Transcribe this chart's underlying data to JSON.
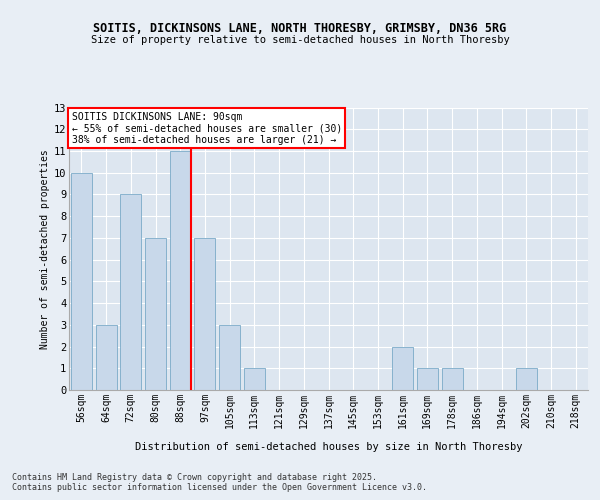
{
  "title1": "SOITIS, DICKINSONS LANE, NORTH THORESBY, GRIMSBY, DN36 5RG",
  "title2": "Size of property relative to semi-detached houses in North Thoresby",
  "xlabel": "Distribution of semi-detached houses by size in North Thoresby",
  "ylabel": "Number of semi-detached properties",
  "categories": [
    "56sqm",
    "64sqm",
    "72sqm",
    "80sqm",
    "88sqm",
    "97sqm",
    "105sqm",
    "113sqm",
    "121sqm",
    "129sqm",
    "137sqm",
    "145sqm",
    "153sqm",
    "161sqm",
    "169sqm",
    "178sqm",
    "186sqm",
    "194sqm",
    "202sqm",
    "210sqm",
    "218sqm"
  ],
  "values": [
    10,
    3,
    9,
    7,
    11,
    7,
    3,
    1,
    0,
    0,
    0,
    0,
    0,
    2,
    1,
    1,
    0,
    0,
    1,
    0,
    0
  ],
  "bar_color": "#c8d8ea",
  "bar_edgecolor": "#7aaac8",
  "red_line_index": 4,
  "annotation_title": "SOITIS DICKINSONS LANE: 90sqm",
  "annotation_line1": "← 55% of semi-detached houses are smaller (30)",
  "annotation_line2": "38% of semi-detached houses are larger (21) →",
  "ylim": [
    0,
    13
  ],
  "yticks": [
    0,
    1,
    2,
    3,
    4,
    5,
    6,
    7,
    8,
    9,
    10,
    11,
    12,
    13
  ],
  "footer1": "Contains HM Land Registry data © Crown copyright and database right 2025.",
  "footer2": "Contains public sector information licensed under the Open Government Licence v3.0.",
  "bg_color": "#e8eef5",
  "plot_bg_color": "#dde6f0"
}
